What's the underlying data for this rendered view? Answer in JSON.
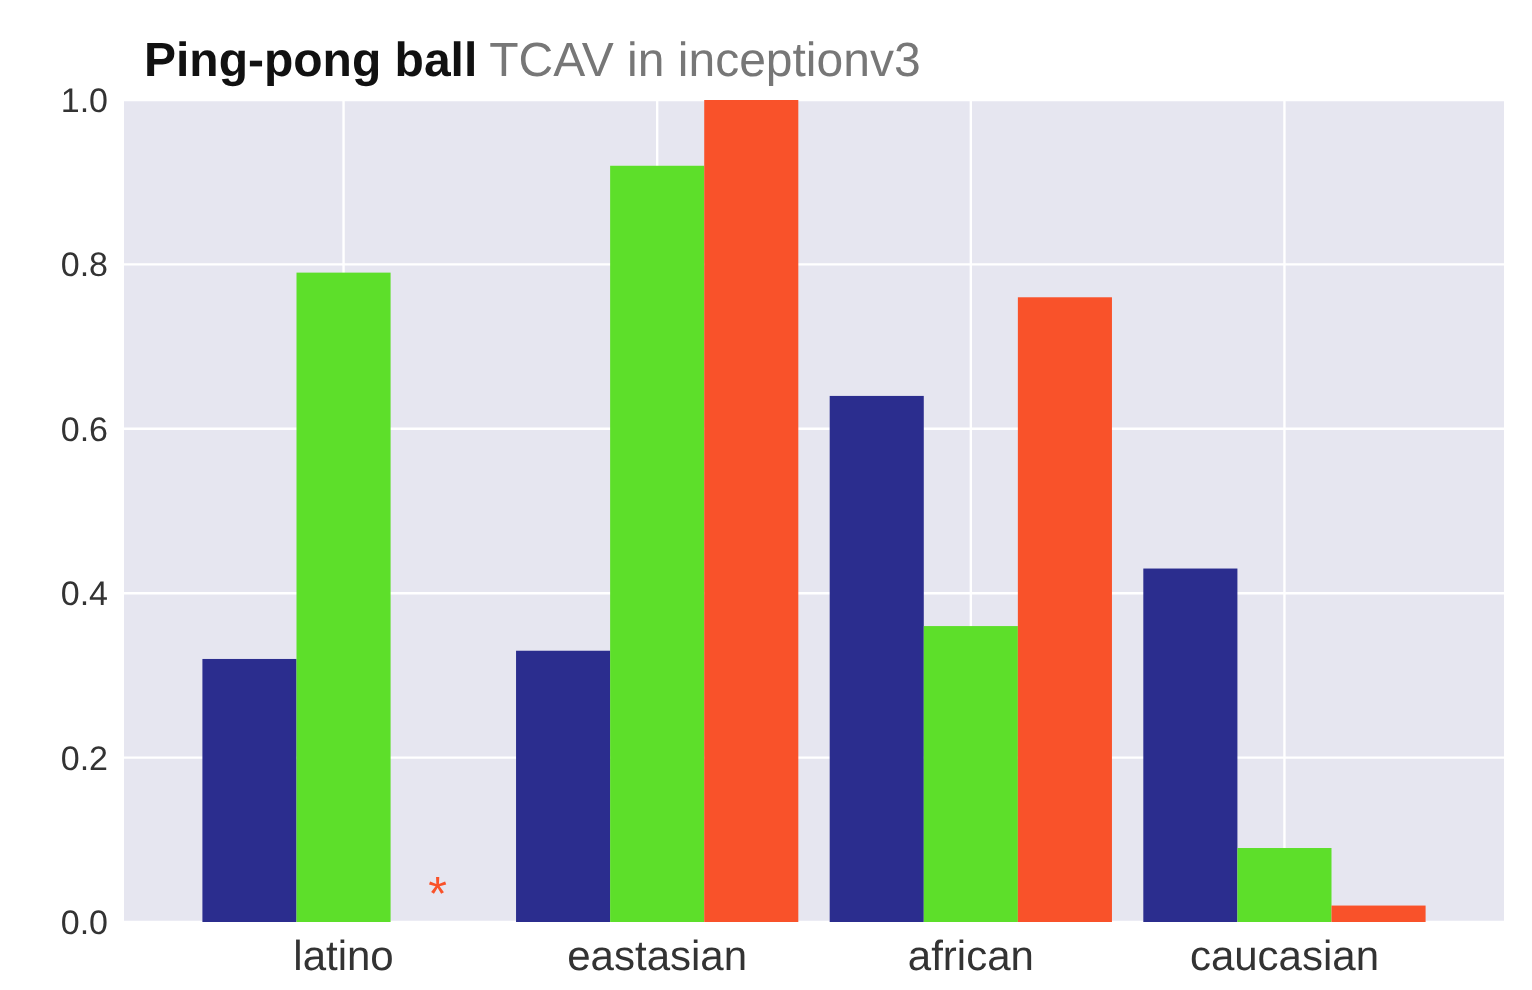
{
  "chart_data": {
    "type": "bar",
    "title": "Ping-pong ball",
    "subtitle": "TCAV in inceptionv3",
    "categories": [
      "latino",
      "eastasian",
      "african",
      "caucasian"
    ],
    "series": [
      {
        "color": "#2b2d8e",
        "values": [
          0.32,
          0.33,
          0.64,
          0.43
        ]
      },
      {
        "color": "#5ddf2a",
        "values": [
          0.79,
          0.92,
          0.36,
          0.09
        ]
      },
      {
        "color": "#f9522a",
        "values": [
          0,
          1.0,
          0.76,
          0.02
        ]
      }
    ],
    "ylim": [
      0,
      1
    ],
    "yticks": [
      {
        "value": 0,
        "label": "0.0"
      },
      {
        "value": 0.2,
        "label": "0.2"
      },
      {
        "value": 0.4,
        "label": "0.4"
      },
      {
        "value": 0.6,
        "label": "0.6"
      },
      {
        "value": 0.8,
        "label": "0.8"
      },
      {
        "value": 1,
        "label": "1.0"
      }
    ],
    "grid": true,
    "annotations": [
      "*"
    ]
  }
}
